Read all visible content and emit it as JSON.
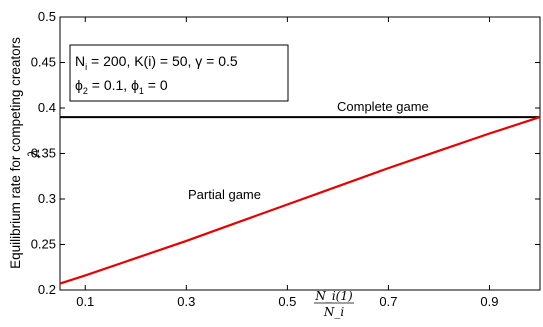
{
  "chart_data": {
    "type": "line",
    "ylabel_line1": "Equilibrium rate for competing creators",
    "ylabel_symbol": "λ",
    "xlabel_num": "N_i(1)",
    "xlabel_den": "N_i",
    "xlim": [
      0.05,
      1.0
    ],
    "ylim": [
      0.2,
      0.5
    ],
    "xticks": [
      0.1,
      0.3,
      0.5,
      0.7,
      0.9
    ],
    "xtick_labels": [
      "0.1",
      "0.3",
      "0.5",
      "0.7",
      "0.9"
    ],
    "yticks": [
      0.2,
      0.25,
      0.3,
      0.35,
      0.4,
      0.45,
      0.5
    ],
    "ytick_labels": [
      "0.2",
      "0.25",
      "0.3",
      "0.35",
      "0.4",
      "0.45",
      "0.5"
    ],
    "grid": false,
    "series": [
      {
        "name": "Complete game",
        "color": "#000000",
        "x": [
          0.05,
          1.0
        ],
        "y": [
          0.39,
          0.39
        ]
      },
      {
        "name": "Partial game",
        "color": "#e60000",
        "x": [
          0.05,
          0.1,
          0.2,
          0.3,
          0.4,
          0.5,
          0.6,
          0.7,
          0.8,
          0.9,
          1.0
        ],
        "y": [
          0.207,
          0.216,
          0.235,
          0.254,
          0.274,
          0.294,
          0.314,
          0.334,
          0.353,
          0.372,
          0.39
        ]
      }
    ],
    "parameter_box": {
      "line1": {
        "n_label": "N",
        "n_sub": "i",
        "n_value": " = 200, K(i) = 50, γ = 0.5"
      },
      "line2": {
        "phi2_label": "ϕ",
        "phi2_sub": "2",
        "phi2_value": " = 0.1, ",
        "phi1_label": "ϕ",
        "phi1_sub": "1",
        "phi1_value": " = 0"
      }
    }
  }
}
